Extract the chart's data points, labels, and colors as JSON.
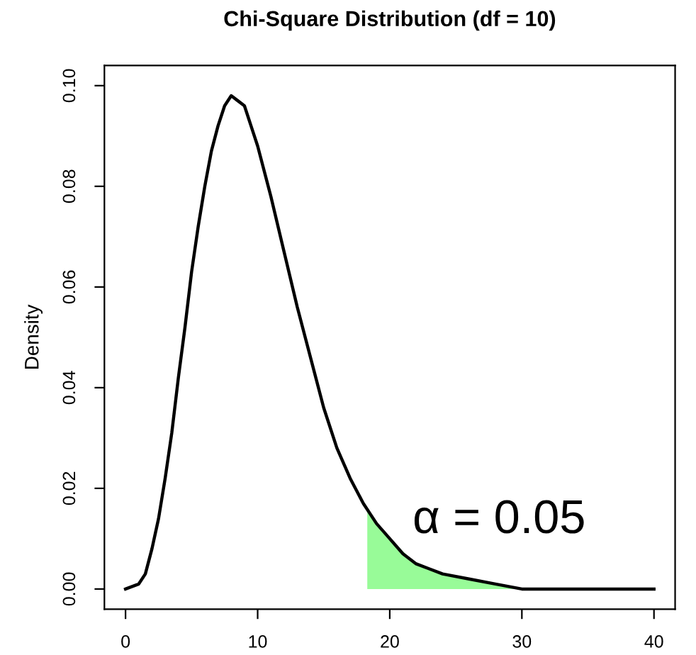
{
  "chart_data": {
    "type": "line",
    "title": "Chi-Square Distribution (df = 10)",
    "ylabel": "Density",
    "xlim": [
      -1.6,
      41.6
    ],
    "xticks": [
      0,
      10,
      20,
      30,
      40
    ],
    "ylim": [
      -0.004,
      0.104
    ],
    "yticks": [
      {
        "value": 0,
        "label": "0.00"
      },
      0.02,
      0.04,
      0.06,
      0.08,
      {
        "value": 0.1,
        "label": "0.10"
      }
    ],
    "series": [
      {
        "type": "area",
        "color": "#98fb98",
        "x": [
          18.3,
          19,
          20,
          22,
          24,
          26,
          28,
          30,
          33,
          36,
          40
        ],
        "values": [
          0.016,
          0.013,
          0.01,
          0.005,
          0.003,
          0.002,
          0.001,
          0.0,
          0.0,
          0.0,
          0.0
        ]
      },
      {
        "color": "#000000",
        "x": [
          0,
          1,
          1.5,
          2,
          2.5,
          3,
          3.5,
          4,
          4.5,
          5,
          5.5,
          6,
          6.5,
          7,
          7.5,
          8,
          8.5,
          9,
          9.5,
          10,
          11,
          12,
          13,
          14,
          15,
          16,
          17,
          18,
          19,
          20,
          21,
          22,
          23,
          24,
          26,
          28,
          30,
          33,
          36,
          40
        ],
        "values": [
          0.0,
          0.001,
          0.003,
          0.008,
          0.014,
          0.022,
          0.031,
          0.042,
          0.052,
          0.063,
          0.072,
          0.08,
          0.087,
          0.092,
          0.096,
          0.098,
          0.097,
          0.096,
          0.092,
          0.088,
          0.078,
          0.067,
          0.056,
          0.046,
          0.036,
          0.028,
          0.022,
          0.017,
          0.013,
          0.01,
          0.007,
          0.005,
          0.004,
          0.003,
          0.002,
          0.001,
          0.0,
          0.0,
          0.0,
          0.0
        ]
      }
    ],
    "annotations": [
      "α = 0.05"
    ],
    "grid": false,
    "legend": false
  }
}
